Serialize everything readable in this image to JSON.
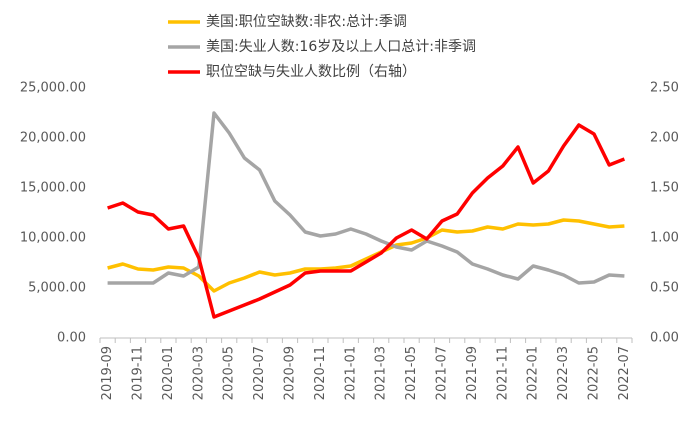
{
  "chart_data": {
    "type": "line",
    "categories": [
      "2019-09",
      null,
      "2019-11",
      null,
      "2020-01",
      null,
      "2020-03",
      null,
      "2020-05",
      null,
      "2020-07",
      null,
      "2020-09",
      null,
      "2020-11",
      null,
      "2021-01",
      null,
      "2021-03",
      null,
      "2021-05",
      null,
      "2021-07",
      null,
      "2021-09",
      null,
      "2021-11",
      null,
      "2022-01",
      null,
      "2022-03",
      null,
      "2022-05",
      null,
      "2022-07"
    ],
    "series": [
      {
        "name": "美国:职位空缺数:非农:总计:季调",
        "color": "#ffc000",
        "values": [
          7000,
          7400,
          6900,
          6800,
          7100,
          7000,
          6200,
          4700,
          5500,
          6000,
          6600,
          6300,
          6500,
          6900,
          6900,
          7000,
          7200,
          7900,
          8600,
          9300,
          9500,
          10000,
          10800,
          10600,
          10700,
          11100,
          10900,
          11400,
          11300,
          11400,
          11800,
          11700,
          11400,
          11100,
          11200
        ]
      },
      {
        "name": "美国:失业人数:16岁及以上人口总计:非季调",
        "color": "#a5a5a5",
        "values": [
          5500,
          5500,
          5500,
          5500,
          6500,
          6200,
          7100,
          22500,
          20500,
          18000,
          16800,
          13700,
          12300,
          10600,
          10200,
          10400,
          10900,
          10400,
          9700,
          9100,
          8800,
          9700,
          9200,
          8600,
          7400,
          6900,
          6300,
          5900,
          7200,
          6800,
          6300,
          5500,
          5600,
          6300,
          6200
        ]
      },
      {
        "name": "职位空缺与失业人数比例（右轴）",
        "color": "#ff0000",
        "axis": "y2",
        "values": [
          1.3,
          1.35,
          1.26,
          1.23,
          1.09,
          1.12,
          0.8,
          0.21,
          0.27,
          0.33,
          0.39,
          0.46,
          0.53,
          0.65,
          0.67,
          0.67,
          0.67,
          0.76,
          0.85,
          1.0,
          1.08,
          0.99,
          1.17,
          1.24,
          1.45,
          1.6,
          1.72,
          1.91,
          1.55,
          1.67,
          1.92,
          2.13,
          2.04,
          1.73,
          1.79
        ]
      }
    ],
    "ylim": [
      0,
      25000
    ],
    "yticks": [
      {
        "value": 0,
        "label": "0.00"
      },
      {
        "value": 5000,
        "label": "5,000.00"
      },
      {
        "value": 10000,
        "label": "10,000.00"
      },
      {
        "value": 15000,
        "label": "15,000.00"
      },
      {
        "value": 20000,
        "label": "20,000.00"
      },
      {
        "value": 25000,
        "label": "25,000.00"
      }
    ],
    "y2lim": [
      0,
      2.5
    ],
    "y2ticks": [
      {
        "value": 0,
        "label": "0.00"
      },
      {
        "value": 0.5,
        "label": "0.50"
      },
      {
        "value": 1,
        "label": "1.00"
      },
      {
        "value": 1.5,
        "label": "1.50"
      },
      {
        "value": 2,
        "label": "2.00"
      },
      {
        "value": 2.5,
        "label": "2.50"
      }
    ],
    "grid": false,
    "legend": "top"
  }
}
